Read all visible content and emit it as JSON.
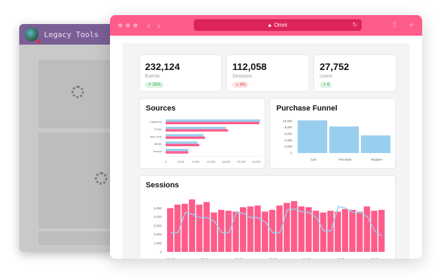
{
  "legacy": {
    "title": "Legacy Tools"
  },
  "browser": {
    "url": "Omni"
  },
  "kpis": [
    {
      "value": "232,124",
      "label": "Events",
      "change": "20%",
      "trend": "up"
    },
    {
      "value": "112,058",
      "label": "Sessions",
      "change": "8%",
      "trend": "down"
    },
    {
      "value": "27,752",
      "label": "Users",
      "change": "8",
      "trend": "up"
    }
  ],
  "colors": {
    "pink": "#fe5c8a",
    "blue": "#99cfee",
    "accent": "#fe5c8a"
  },
  "chart_data": [
    {
      "type": "bar",
      "orientation": "horizontal",
      "title": "Sources",
      "categories": [
        "California",
        "Texas",
        "New York",
        "Illinois",
        "Florida"
      ],
      "series": [
        {
          "values": [
            25000,
            16000,
            10000,
            8400,
            6000
          ],
          "color": "#99cfee"
        },
        {
          "values": [
            24800,
            16500,
            10400,
            8900,
            6000
          ],
          "color": "#fe5c8a"
        }
      ],
      "xticks": [
        "0",
        "4,000",
        "8,000",
        "12,000",
        "16,000",
        "20,000",
        "24,000"
      ],
      "xlim": [
        0,
        25500
      ]
    },
    {
      "type": "bar",
      "title": "Purchase Funnel",
      "categories": [
        "Cart",
        "Purchase",
        "Register"
      ],
      "values": [
        10200,
        8300,
        5500
      ],
      "yticks": [
        "0",
        "2,000",
        "4,000",
        "6,000",
        "8,000",
        "10,000"
      ],
      "ylim": [
        0,
        10500
      ]
    },
    {
      "type": "bar+line",
      "title": "Sessions",
      "xticks": [
        "10-15",
        "10-19",
        "10-23",
        "10-27",
        "11-04",
        "11-08",
        "11-12"
      ],
      "yticks": [
        "0",
        "1,000",
        "2,000",
        "3,000",
        "4,000",
        "5,000"
      ],
      "ylim": [
        0,
        6200
      ],
      "bars": [
        5000,
        5400,
        5500,
        6000,
        5400,
        5700,
        4500,
        4800,
        4700,
        4600,
        5100,
        5200,
        5300,
        4600,
        4800,
        5300,
        5600,
        5800,
        5200,
        5100,
        4700,
        4500,
        4700,
        4600,
        4900,
        4800,
        4600,
        5200,
        4700,
        4800
      ],
      "line": [
        2200,
        2200,
        4500,
        4300,
        3900,
        3900,
        3500,
        2200,
        2200,
        4500,
        4400,
        3900,
        3900,
        3400,
        2200,
        2200,
        4800,
        4900,
        4600,
        4500,
        3900,
        2400,
        2400,
        5200,
        5000,
        4500,
        4500,
        4000,
        2400,
        1800
      ]
    }
  ]
}
